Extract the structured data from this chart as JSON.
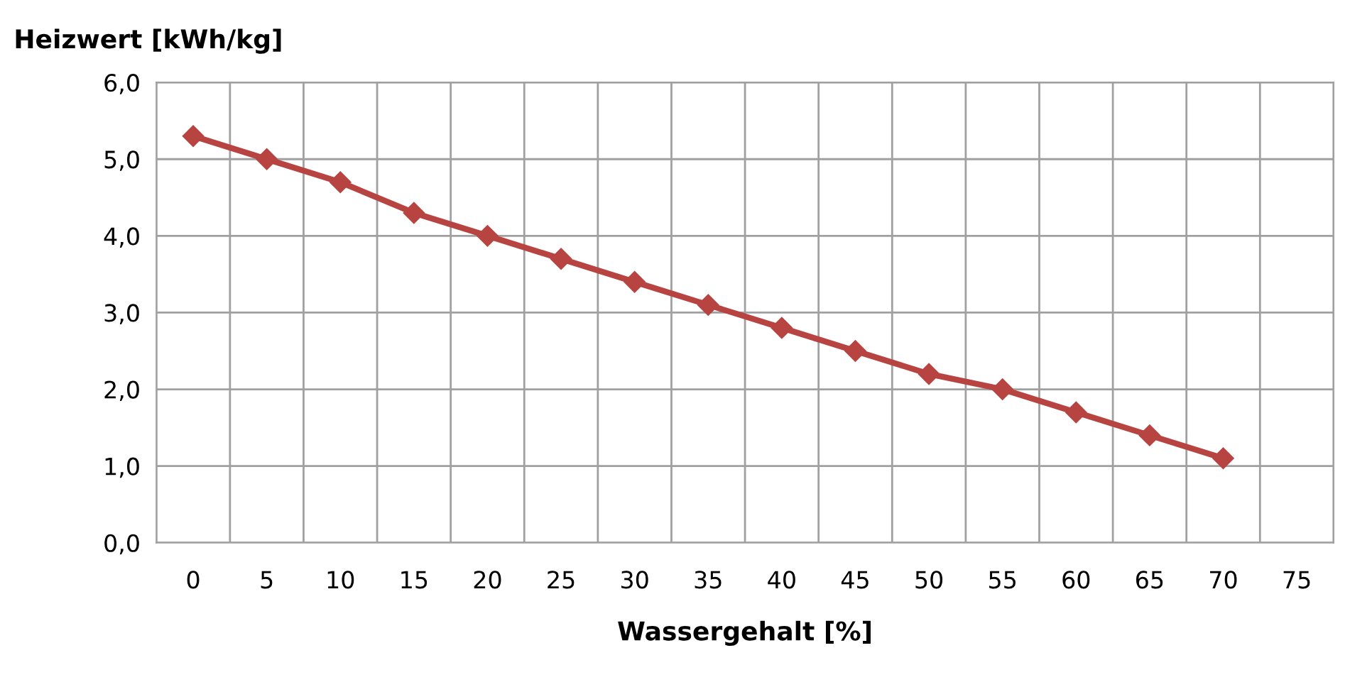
{
  "chart_data": {
    "type": "line",
    "ylabel": "Heizwert [kWh/kg]",
    "xlabel": "Wassergehalt [%]",
    "categories": [
      "0",
      "5",
      "10",
      "15",
      "20",
      "25",
      "30",
      "35",
      "40",
      "45",
      "50",
      "55",
      "60",
      "65",
      "70",
      "75"
    ],
    "series": [
      {
        "color": "#b84441",
        "values": [
          5.3,
          5.0,
          4.7,
          4.3,
          4.0,
          3.7,
          3.4,
          3.1,
          2.8,
          2.5,
          2.2,
          2.0,
          1.7,
          1.4,
          1.1,
          null
        ]
      }
    ],
    "ylim": [
      0,
      6
    ],
    "yticks": [
      {
        "value": 0,
        "label": "0,0"
      },
      {
        "value": 1,
        "label": "1,0"
      },
      {
        "value": 2,
        "label": "2,0"
      },
      {
        "value": 3,
        "label": "3,0"
      },
      {
        "value": 4,
        "label": "4,0"
      },
      {
        "value": 5,
        "label": "5,0"
      },
      {
        "value": 6,
        "label": "6,0"
      }
    ],
    "grid": true,
    "marker": "diamond",
    "line_style": "solid"
  }
}
